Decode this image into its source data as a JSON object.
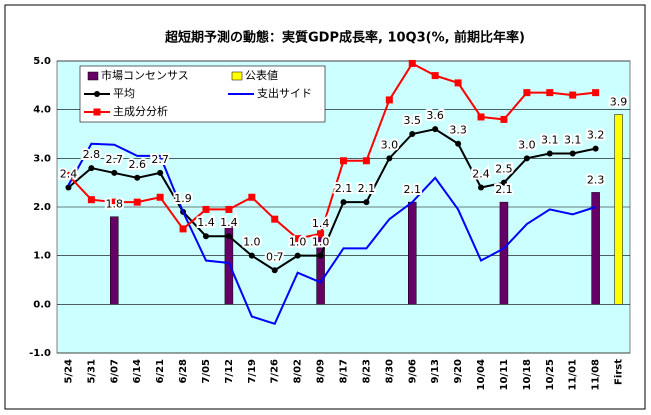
{
  "chart_data": {
    "type": "combo",
    "title": "超短期予測の動態：実質GDP成長率, 10Q3(%, 前期比年率)",
    "categories": [
      "5/24",
      "5/31",
      "6/07",
      "6/14",
      "6/21",
      "6/28",
      "7/05",
      "7/12",
      "7/19",
      "7/26",
      "8/02",
      "8/09",
      "8/17",
      "8/23",
      "8/30",
      "9/06",
      "9/13",
      "9/20",
      "10/04",
      "10/11",
      "10/18",
      "10/25",
      "11/01",
      "11/08",
      "First"
    ],
    "ylim": [
      -1,
      5
    ],
    "yticks": [
      {
        "value": -1,
        "label": "-1.0"
      },
      {
        "value": 0,
        "label": "0.0"
      },
      {
        "value": 1,
        "label": "1.0"
      },
      {
        "value": 2,
        "label": "2.0"
      },
      {
        "value": 3,
        "label": "3.0"
      },
      {
        "value": 4,
        "label": "4.0"
      },
      {
        "value": 5,
        "label": "5.0"
      }
    ],
    "grid": true,
    "background": "#ccffff",
    "series": [
      {
        "name": "市場コンセンサス",
        "kind": "bar",
        "color": "#660066",
        "values": [
          null,
          null,
          1.8,
          null,
          null,
          null,
          null,
          1.6,
          null,
          null,
          null,
          1.4,
          null,
          null,
          null,
          2.1,
          null,
          null,
          null,
          2.1,
          null,
          null,
          null,
          2.3,
          null
        ],
        "value_labels": [
          null,
          null,
          "1.8",
          null,
          null,
          null,
          null,
          null,
          null,
          null,
          null,
          "1.4",
          null,
          null,
          null,
          "2.1",
          null,
          null,
          null,
          "2.1",
          null,
          null,
          null,
          "2.3",
          null
        ]
      },
      {
        "name": "公表値",
        "kind": "bar",
        "color": "#ffff00",
        "values": [
          null,
          null,
          null,
          null,
          null,
          null,
          null,
          null,
          null,
          null,
          null,
          null,
          null,
          null,
          null,
          null,
          null,
          null,
          null,
          null,
          null,
          null,
          null,
          null,
          3.9
        ],
        "value_labels": [
          null,
          null,
          null,
          null,
          null,
          null,
          null,
          null,
          null,
          null,
          null,
          null,
          null,
          null,
          null,
          null,
          null,
          null,
          null,
          null,
          null,
          null,
          null,
          null,
          "3.9"
        ]
      },
      {
        "name": "平均",
        "kind": "line",
        "marker": "circle",
        "color": "#000000",
        "values": [
          2.4,
          2.8,
          2.7,
          2.6,
          2.7,
          1.9,
          1.4,
          1.4,
          1.0,
          0.7,
          1.0,
          1.0,
          2.1,
          2.1,
          3.0,
          3.5,
          3.6,
          3.3,
          2.4,
          2.5,
          3.0,
          3.1,
          3.1,
          3.2,
          null
        ],
        "value_labels": [
          "2.4",
          "2.8",
          "2.7",
          "2.6",
          "2.7",
          "1.9",
          "1.4",
          "1.4",
          "1.0",
          "0.7",
          "1.0",
          "1.0",
          "2.1",
          "2.1",
          "3.0",
          "3.5",
          "3.6",
          "3.3",
          "2.4",
          "2.5",
          "3.0",
          "3.1",
          "3.1",
          "3.2",
          null
        ]
      },
      {
        "name": "支出サイド",
        "kind": "line",
        "marker": "none",
        "color": "#0000ff",
        "values": [
          2.45,
          3.3,
          3.28,
          3.05,
          3.05,
          1.9,
          0.9,
          0.85,
          -0.25,
          -0.4,
          0.65,
          0.45,
          1.15,
          1.15,
          1.75,
          2.1,
          2.6,
          1.95,
          0.9,
          1.15,
          1.65,
          1.95,
          1.85,
          2.0,
          null
        ]
      },
      {
        "name": "主成分分析",
        "kind": "line",
        "marker": "square",
        "color": "#ff0000",
        "values": [
          2.65,
          2.15,
          2.1,
          2.1,
          2.2,
          1.55,
          1.95,
          1.95,
          2.2,
          1.75,
          1.35,
          1.45,
          2.95,
          2.95,
          4.2,
          4.95,
          4.7,
          4.55,
          3.85,
          3.8,
          4.35,
          4.35,
          4.3,
          4.35,
          null
        ]
      }
    ]
  }
}
